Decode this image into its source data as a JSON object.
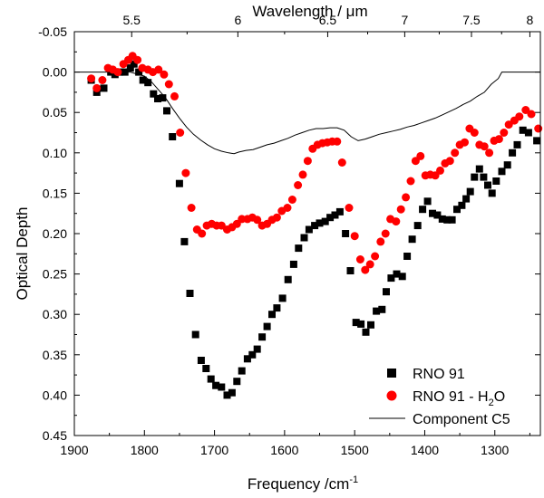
{
  "chart_data": {
    "type": "scatter",
    "xlabel": "Frequency /cm",
    "xlabel_sup": "-1",
    "ylabel": "Optical Depth",
    "top_axis_title": "Wavelength / μm",
    "xlim": [
      1900,
      1235
    ],
    "ylim": [
      0.45,
      -0.05
    ],
    "x_ticks": [
      1900,
      1800,
      1700,
      1600,
      1500,
      1400,
      1300
    ],
    "x_tick_labels": [
      "1900",
      "1800",
      "1700",
      "1600",
      "1500",
      "1400",
      "1300"
    ],
    "y_ticks": [
      -0.05,
      0.0,
      0.05,
      0.1,
      0.15,
      0.2,
      0.25,
      0.3,
      0.35,
      0.4,
      0.45
    ],
    "y_tick_labels": [
      "-0.05",
      "0.00",
      "0.05",
      "0.10",
      "0.15",
      "0.20",
      "0.25",
      "0.30",
      "0.35",
      "0.40",
      "0.45"
    ],
    "top_ticks": [
      5.5,
      6,
      6.5,
      7,
      7.5,
      8
    ],
    "top_tick_labels": [
      "5.5",
      "6",
      "6.5",
      "7",
      "7.5",
      "8"
    ],
    "legend": {
      "position": "bottom-right",
      "entries": [
        {
          "label": "RNO 91",
          "sub": "",
          "marker": "square",
          "color": "#000000"
        },
        {
          "label": "RNO 91 - H",
          "sub": "2",
          "tail": "O",
          "marker": "circle",
          "color": "#ff0000"
        },
        {
          "label": "Component C5",
          "sub": "",
          "marker": "line",
          "color": "#000000"
        }
      ]
    },
    "series": [
      {
        "name": "RNO 91",
        "marker": "square",
        "color": "#000000",
        "points": [
          [
            1876,
            0.01
          ],
          [
            1868,
            0.025
          ],
          [
            1858,
            0.02
          ],
          [
            1848,
            0.0
          ],
          [
            1842,
            0.003
          ],
          [
            1835,
            0.0
          ],
          [
            1828,
            0.0
          ],
          [
            1820,
            -0.005
          ],
          [
            1815,
            -0.01
          ],
          [
            1808,
            0.0
          ],
          [
            1802,
            0.01
          ],
          [
            1795,
            0.013
          ],
          [
            1787,
            0.027
          ],
          [
            1781,
            0.033
          ],
          [
            1774,
            0.032
          ],
          [
            1768,
            0.048
          ],
          [
            1760,
            0.08
          ],
          [
            1750,
            0.138
          ],
          [
            1743,
            0.21
          ],
          [
            1735,
            0.274
          ],
          [
            1727,
            0.325
          ],
          [
            1719,
            0.357
          ],
          [
            1712,
            0.367
          ],
          [
            1705,
            0.38
          ],
          [
            1698,
            0.388
          ],
          [
            1690,
            0.39
          ],
          [
            1682,
            0.4
          ],
          [
            1675,
            0.397
          ],
          [
            1668,
            0.383
          ],
          [
            1661,
            0.37
          ],
          [
            1653,
            0.355
          ],
          [
            1646,
            0.35
          ],
          [
            1639,
            0.343
          ],
          [
            1632,
            0.328
          ],
          [
            1625,
            0.315
          ],
          [
            1618,
            0.3
          ],
          [
            1611,
            0.292
          ],
          [
            1603,
            0.28
          ],
          [
            1595,
            0.257
          ],
          [
            1587,
            0.238
          ],
          [
            1580,
            0.218
          ],
          [
            1572,
            0.205
          ],
          [
            1565,
            0.195
          ],
          [
            1557,
            0.19
          ],
          [
            1550,
            0.187
          ],
          [
            1542,
            0.185
          ],
          [
            1535,
            0.18
          ],
          [
            1528,
            0.177
          ],
          [
            1521,
            0.173
          ],
          [
            1513,
            0.2
          ],
          [
            1506,
            0.246
          ],
          [
            1498,
            0.31
          ],
          [
            1491,
            0.312
          ],
          [
            1484,
            0.322
          ],
          [
            1477,
            0.313
          ],
          [
            1469,
            0.296
          ],
          [
            1461,
            0.294
          ],
          [
            1455,
            0.272
          ],
          [
            1448,
            0.255
          ],
          [
            1440,
            0.25
          ],
          [
            1432,
            0.253
          ],
          [
            1425,
            0.228
          ],
          [
            1418,
            0.207
          ],
          [
            1410,
            0.19
          ],
          [
            1403,
            0.17
          ],
          [
            1396,
            0.16
          ],
          [
            1389,
            0.175
          ],
          [
            1382,
            0.177
          ],
          [
            1375,
            0.182
          ],
          [
            1368,
            0.183
          ],
          [
            1361,
            0.183
          ],
          [
            1354,
            0.17
          ],
          [
            1347,
            0.165
          ],
          [
            1341,
            0.157
          ],
          [
            1335,
            0.148
          ],
          [
            1329,
            0.13
          ],
          [
            1322,
            0.12
          ],
          [
            1316,
            0.13
          ],
          [
            1310,
            0.14
          ],
          [
            1304,
            0.15
          ],
          [
            1298,
            0.135
          ],
          [
            1290,
            0.123
          ],
          [
            1282,
            0.115
          ],
          [
            1275,
            0.1
          ],
          [
            1268,
            0.09
          ],
          [
            1260,
            0.072
          ],
          [
            1252,
            0.075
          ],
          [
            1240,
            0.085
          ]
        ]
      },
      {
        "name": "RNO 91 - H2O",
        "marker": "circle",
        "color": "#ff0000",
        "points": [
          [
            1876,
            0.008
          ],
          [
            1868,
            0.02
          ],
          [
            1860,
            0.01
          ],
          [
            1852,
            -0.005
          ],
          [
            1845,
            -0.003
          ],
          [
            1838,
            0.0
          ],
          [
            1830,
            -0.01
          ],
          [
            1823,
            -0.015
          ],
          [
            1817,
            -0.02
          ],
          [
            1810,
            -0.015
          ],
          [
            1803,
            -0.005
          ],
          [
            1795,
            -0.003
          ],
          [
            1788,
            0.0
          ],
          [
            1780,
            -0.003
          ],
          [
            1772,
            0.003
          ],
          [
            1765,
            0.015
          ],
          [
            1757,
            0.03
          ],
          [
            1749,
            0.075
          ],
          [
            1741,
            0.125
          ],
          [
            1733,
            0.168
          ],
          [
            1725,
            0.195
          ],
          [
            1718,
            0.2
          ],
          [
            1711,
            0.19
          ],
          [
            1704,
            0.188
          ],
          [
            1697,
            0.19
          ],
          [
            1690,
            0.19
          ],
          [
            1682,
            0.195
          ],
          [
            1675,
            0.192
          ],
          [
            1668,
            0.188
          ],
          [
            1661,
            0.182
          ],
          [
            1653,
            0.182
          ],
          [
            1646,
            0.18
          ],
          [
            1639,
            0.183
          ],
          [
            1632,
            0.19
          ],
          [
            1625,
            0.188
          ],
          [
            1618,
            0.183
          ],
          [
            1611,
            0.18
          ],
          [
            1604,
            0.172
          ],
          [
            1596,
            0.168
          ],
          [
            1589,
            0.158
          ],
          [
            1581,
            0.14
          ],
          [
            1574,
            0.127
          ],
          [
            1567,
            0.11
          ],
          [
            1560,
            0.095
          ],
          [
            1553,
            0.09
          ],
          [
            1546,
            0.088
          ],
          [
            1539,
            0.087
          ],
          [
            1532,
            0.086
          ],
          [
            1525,
            0.086
          ],
          [
            1518,
            0.112
          ],
          [
            1508,
            0.168
          ],
          [
            1500,
            0.203
          ],
          [
            1492,
            0.232
          ],
          [
            1485,
            0.245
          ],
          [
            1478,
            0.238
          ],
          [
            1471,
            0.228
          ],
          [
            1463,
            0.21
          ],
          [
            1456,
            0.2
          ],
          [
            1449,
            0.182
          ],
          [
            1441,
            0.185
          ],
          [
            1434,
            0.17
          ],
          [
            1427,
            0.155
          ],
          [
            1420,
            0.135
          ],
          [
            1413,
            0.11
          ],
          [
            1406,
            0.104
          ],
          [
            1399,
            0.128
          ],
          [
            1392,
            0.127
          ],
          [
            1385,
            0.128
          ],
          [
            1378,
            0.122
          ],
          [
            1371,
            0.113
          ],
          [
            1364,
            0.11
          ],
          [
            1357,
            0.1
          ],
          [
            1350,
            0.09
          ],
          [
            1343,
            0.087
          ],
          [
            1336,
            0.07
          ],
          [
            1329,
            0.075
          ],
          [
            1322,
            0.09
          ],
          [
            1315,
            0.092
          ],
          [
            1308,
            0.1
          ],
          [
            1301,
            0.085
          ],
          [
            1294,
            0.083
          ],
          [
            1287,
            0.075
          ],
          [
            1280,
            0.065
          ],
          [
            1272,
            0.06
          ],
          [
            1265,
            0.055
          ],
          [
            1256,
            0.047
          ],
          [
            1248,
            0.052
          ],
          [
            1238,
            0.07
          ]
        ]
      },
      {
        "name": "Component C5",
        "marker": "line",
        "color": "#000000",
        "points": [
          [
            1900,
            0.0
          ],
          [
            1880,
            0.0
          ],
          [
            1860,
            0.0
          ],
          [
            1840,
            0.0
          ],
          [
            1820,
            0.0
          ],
          [
            1800,
            0.005
          ],
          [
            1790,
            0.012
          ],
          [
            1780,
            0.022
          ],
          [
            1770,
            0.032
          ],
          [
            1760,
            0.045
          ],
          [
            1750,
            0.057
          ],
          [
            1740,
            0.068
          ],
          [
            1730,
            0.077
          ],
          [
            1720,
            0.084
          ],
          [
            1710,
            0.09
          ],
          [
            1700,
            0.095
          ],
          [
            1690,
            0.098
          ],
          [
            1680,
            0.1
          ],
          [
            1672,
            0.101
          ],
          [
            1665,
            0.099
          ],
          [
            1655,
            0.097
          ],
          [
            1645,
            0.096
          ],
          [
            1635,
            0.093
          ],
          [
            1625,
            0.09
          ],
          [
            1615,
            0.088
          ],
          [
            1605,
            0.085
          ],
          [
            1595,
            0.082
          ],
          [
            1585,
            0.078
          ],
          [
            1575,
            0.075
          ],
          [
            1565,
            0.072
          ],
          [
            1555,
            0.07
          ],
          [
            1545,
            0.07
          ],
          [
            1535,
            0.069
          ],
          [
            1525,
            0.069
          ],
          [
            1515,
            0.072
          ],
          [
            1505,
            0.08
          ],
          [
            1495,
            0.085
          ],
          [
            1485,
            0.083
          ],
          [
            1475,
            0.08
          ],
          [
            1465,
            0.077
          ],
          [
            1455,
            0.075
          ],
          [
            1445,
            0.073
          ],
          [
            1435,
            0.071
          ],
          [
            1425,
            0.068
          ],
          [
            1415,
            0.066
          ],
          [
            1405,
            0.063
          ],
          [
            1395,
            0.06
          ],
          [
            1385,
            0.057
          ],
          [
            1375,
            0.053
          ],
          [
            1365,
            0.049
          ],
          [
            1355,
            0.045
          ],
          [
            1345,
            0.04
          ],
          [
            1335,
            0.036
          ],
          [
            1325,
            0.03
          ],
          [
            1315,
            0.025
          ],
          [
            1305,
            0.015
          ],
          [
            1295,
            0.008
          ],
          [
            1290,
            0.0
          ],
          [
            1285,
            0.0
          ],
          [
            1260,
            0.0
          ],
          [
            1235,
            0.0
          ]
        ]
      }
    ]
  }
}
